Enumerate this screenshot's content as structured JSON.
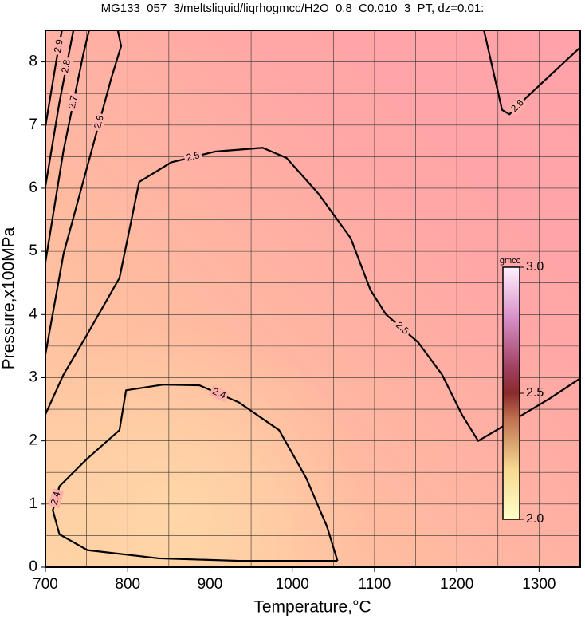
{
  "chart_data": {
    "type": "contour",
    "title": "MG133_057_3/meltsliquid/liqrhogmcc/H2O_0.8_C0.010_3_PT, dz=0.01:",
    "x_label": "Temperature,°C",
    "y_label": "Pressure,x100MPa",
    "xlim": [
      700,
      1350
    ],
    "ylim": [
      0,
      8.5
    ],
    "xticks": [
      700,
      800,
      900,
      1000,
      1100,
      1200,
      1300
    ],
    "yticks": [
      0,
      1,
      2,
      3,
      4,
      5,
      6,
      7,
      8
    ],
    "xgrid": [
      700,
      750,
      800,
      850,
      900,
      950,
      1000,
      1050,
      1100,
      1150,
      1200,
      1250,
      1300,
      1350
    ],
    "ygrid": [
      0,
      0.5,
      1,
      1.5,
      2,
      2.5,
      3,
      3.5,
      4,
      4.5,
      5,
      5.5,
      6,
      6.5,
      7,
      7.5,
      8,
      8.5
    ],
    "grid": true,
    "contours": [
      {
        "level": 2.4,
        "x": [
          1055,
          1042,
          1017,
          984,
          935,
          887,
          843,
          798,
          790,
          751,
          717,
          709,
          717,
          751,
          838,
          935,
          1055
        ],
        "y": [
          0.1,
          0.65,
          1.41,
          2.17,
          2.61,
          2.88,
          2.89,
          2.8,
          2.17,
          1.72,
          1.28,
          0.9,
          0.52,
          0.27,
          0.14,
          0.1,
          0.1
        ]
      },
      {
        "level": 2.5,
        "x": [
          700,
          722,
          751,
          790,
          800,
          814,
          853,
          906,
          964,
          993,
          1032,
          1071,
          1095,
          1114,
          1153,
          1182,
          1206,
          1226,
          1264,
          1313,
          1350
        ],
        "y": [
          2.42,
          3.05,
          3.69,
          4.58,
          5.21,
          6.1,
          6.41,
          6.58,
          6.64,
          6.48,
          5.91,
          5.21,
          4.39,
          4.0,
          3.56,
          3.05,
          2.42,
          2.0,
          2.29,
          2.67,
          2.99
        ]
      },
      {
        "level": 2.6,
        "x": [
          1233,
          1255,
          1264,
          1284,
          1350
        ],
        "y": [
          8.5,
          7.24,
          7.17,
          7.43,
          8.23
        ]
      },
      {
        "level": 2.6,
        "x": [
          700,
          722,
          751,
          780,
          792,
          788
        ],
        "y": [
          3.37,
          4.96,
          6.35,
          7.74,
          8.25,
          8.5
        ]
      },
      {
        "level": 2.7,
        "x": [
          700,
          722,
          746,
          753
        ],
        "y": [
          4.83,
          6.6,
          8.12,
          8.5
        ]
      },
      {
        "level": 2.8,
        "x": [
          700,
          717,
          734
        ],
        "y": [
          6.03,
          7.36,
          8.5
        ]
      },
      {
        "level": 2.9,
        "x": [
          700,
          713,
          720
        ],
        "y": [
          6.98,
          8.0,
          8.5
        ]
      }
    ],
    "colorbar": {
      "label": "gmcc",
      "lim": [
        2.0,
        3.0
      ],
      "ticks": [
        {
          "value": 2.0,
          "label": "2.0"
        },
        2.5,
        {
          "value": 3.0,
          "label": "3.0"
        }
      ]
    }
  }
}
